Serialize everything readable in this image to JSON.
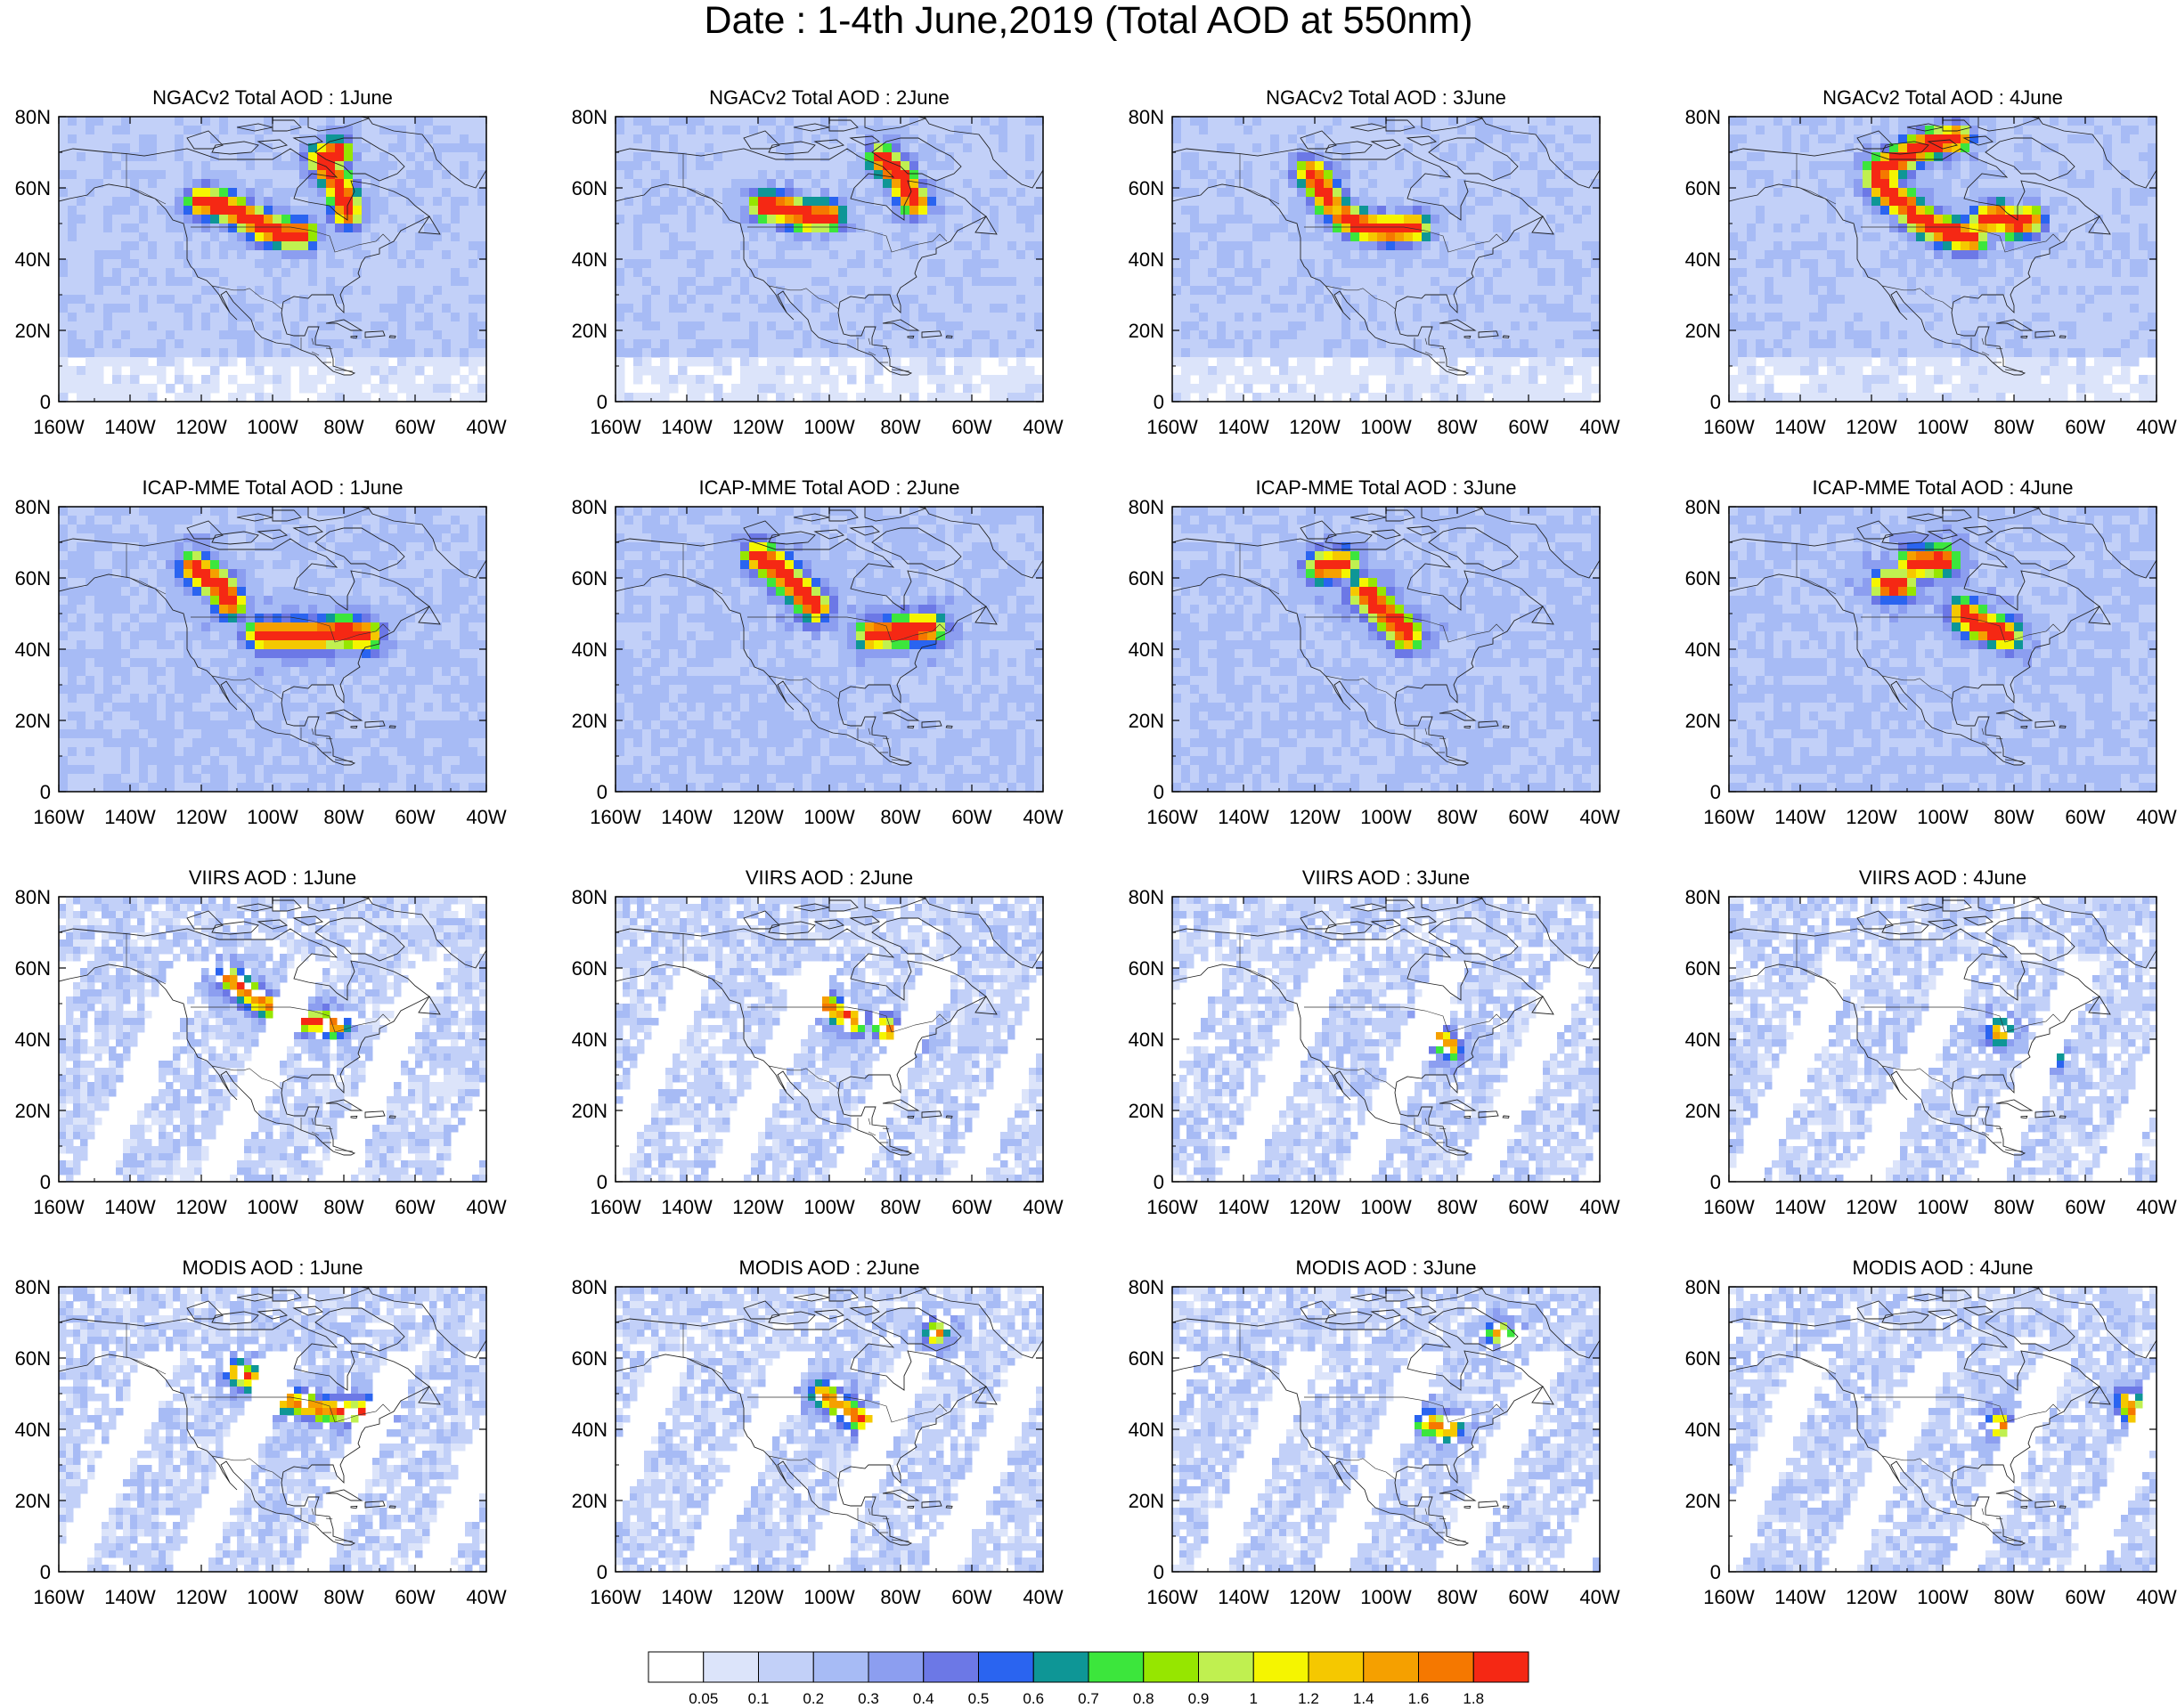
{
  "title": "Date : 1-4th June,2019 (Total AOD at 550nm)",
  "axes": {
    "lon_ticks": [
      "160W",
      "140W",
      "120W",
      "100W",
      "80W",
      "60W",
      "40W"
    ],
    "lat_ticks": [
      "80N",
      "60N",
      "40N",
      "20N",
      "0"
    ],
    "lon_range": [
      -160,
      -40
    ],
    "lat_range": [
      0,
      80
    ]
  },
  "rows": [
    {
      "dataset": "NGACv2",
      "titles": [
        "NGACv2 Total AOD : 1June",
        "NGACv2 Total AOD : 2June",
        "NGACv2 Total AOD : 3June",
        "NGACv2 Total AOD : 4June"
      ]
    },
    {
      "dataset": "ICAP-MME",
      "titles": [
        "ICAP-MME Total AOD : 1June",
        "ICAP-MME Total AOD : 2June",
        "ICAP-MME Total AOD : 3June",
        "ICAP-MME Total AOD : 4June"
      ]
    },
    {
      "dataset": "VIIRS",
      "titles": [
        "VIIRS AOD : 1June",
        "VIIRS AOD : 2June",
        "VIIRS AOD : 3June",
        "VIIRS AOD : 4June"
      ]
    },
    {
      "dataset": "MODIS",
      "titles": [
        "MODIS AOD : 1June",
        "MODIS AOD : 2June",
        "MODIS AOD : 3June",
        "MODIS AOD : 4June"
      ]
    }
  ],
  "colorbar": {
    "labels": [
      "0.05",
      "0.1",
      "0.2",
      "0.3",
      "0.4",
      "0.5",
      "0.6",
      "0.7",
      "0.8",
      "0.9",
      "1",
      "1.2",
      "1.4",
      "1.6",
      "1.8"
    ],
    "colors": [
      "#ffffff",
      "#dce4fa",
      "#c2d0f8",
      "#a7bbf5",
      "#8c9ef0",
      "#6c78e6",
      "#2a64f0",
      "#0e9696",
      "#3ce63c",
      "#96e600",
      "#c0f050",
      "#f5f500",
      "#f5c800",
      "#f5a000",
      "#f57800",
      "#f52814"
    ]
  },
  "plumes": [
    [
      [
        [
          -120,
          56
        ],
        [
          -114,
          55
        ],
        [
          -108,
          52
        ],
        [
          -102,
          49
        ],
        [
          -96,
          47
        ],
        [
          -92,
          47
        ]
      ],
      [
        [
          -85,
          66
        ],
        [
          -82,
          62
        ],
        [
          -80,
          57
        ],
        [
          -79,
          53
        ]
      ],
      [
        [
          -86,
          68
        ],
        [
          -82,
          70
        ]
      ]
    ],
    [
      [
        [
          -118,
          55
        ],
        [
          -112,
          54
        ],
        [
          -106,
          52
        ],
        [
          -100,
          52
        ]
      ],
      [
        [
          -85,
          68
        ],
        [
          -80,
          63
        ],
        [
          -76,
          56
        ]
      ]
    ],
    [
      [
        [
          -121,
          64
        ],
        [
          -118,
          60
        ],
        [
          -116,
          56
        ]
      ],
      [
        [
          -112,
          52
        ],
        [
          -106,
          49
        ],
        [
          -98,
          48
        ],
        [
          -92,
          49
        ]
      ]
    ],
    [
      [
        [
          -118,
          65
        ],
        [
          -112,
          68
        ],
        [
          -105,
          72
        ],
        [
          -96,
          74
        ]
      ],
      [
        [
          -118,
          62
        ],
        [
          -115,
          58
        ],
        [
          -110,
          55
        ]
      ],
      [
        [
          -108,
          52
        ],
        [
          -100,
          48
        ],
        [
          -92,
          46
        ]
      ],
      [
        [
          -88,
          51
        ],
        [
          -84,
          52
        ],
        [
          -80,
          50
        ],
        [
          -76,
          51
        ]
      ]
    ],
    [
      [
        [
          -122,
          63
        ],
        [
          -118,
          60
        ],
        [
          -114,
          57
        ],
        [
          -112,
          53
        ]
      ],
      [
        [
          -103,
          44
        ],
        [
          -96,
          44
        ],
        [
          -88,
          44
        ],
        [
          -80,
          45
        ],
        [
          -74,
          44
        ]
      ]
    ],
    [
      [
        [
          -120,
          66
        ],
        [
          -116,
          64
        ],
        [
          -112,
          60
        ],
        [
          -108,
          56
        ],
        [
          -104,
          52
        ]
      ],
      [
        [
          -88,
          44
        ],
        [
          -80,
          45
        ],
        [
          -72,
          46
        ]
      ]
    ],
    [
      [
        [
          -118,
          63
        ],
        [
          -112,
          64
        ]
      ],
      [
        [
          -106,
          56
        ],
        [
          -102,
          52
        ],
        [
          -98,
          48
        ],
        [
          -94,
          44
        ]
      ]
    ],
    [
      [
        [
          -116,
          58
        ],
        [
          -112,
          58
        ]
      ],
      [
        [
          -108,
          64
        ],
        [
          -100,
          65
        ]
      ],
      [
        [
          -94,
          50
        ],
        [
          -88,
          46
        ],
        [
          -82,
          44
        ]
      ]
    ],
    [
      [
        [
          -112,
          57
        ],
        [
          -108,
          54
        ],
        [
          -103,
          50
        ],
        [
          -96,
          47
        ],
        [
          -90,
          45
        ],
        [
          -82,
          44
        ]
      ]
    ],
    [
      [
        [
          -104,
          51
        ],
        [
          -98,
          48
        ],
        [
          -93,
          45
        ]
      ],
      [
        [
          -84,
          43
        ],
        [
          -78,
          40
        ]
      ]
    ],
    [
      [
        [
          -88,
          42
        ],
        [
          -82,
          38
        ]
      ]
    ],
    [
      [
        [
          -84,
          42
        ]
      ],
      [
        [
          -70,
          35
        ]
      ]
    ],
    [
      [
        [
          -110,
          56
        ],
        [
          -104,
          53
        ],
        [
          -96,
          48
        ],
        [
          -88,
          46
        ],
        [
          -80,
          45
        ],
        [
          -72,
          45
        ]
      ]
    ],
    [
      [
        [
          -102,
          50
        ],
        [
          -96,
          46
        ],
        [
          -90,
          42
        ]
      ],
      [
        [
          -70,
          67
        ]
      ]
    ],
    [
      [
        [
          -88,
          42
        ],
        [
          -82,
          40
        ]
      ],
      [
        [
          -68,
          67
        ]
      ]
    ],
    [
      [
        [
          -84,
          41
        ]
      ],
      [
        [
          -48,
          48
        ],
        [
          -46,
          44
        ]
      ]
    ]
  ]
}
